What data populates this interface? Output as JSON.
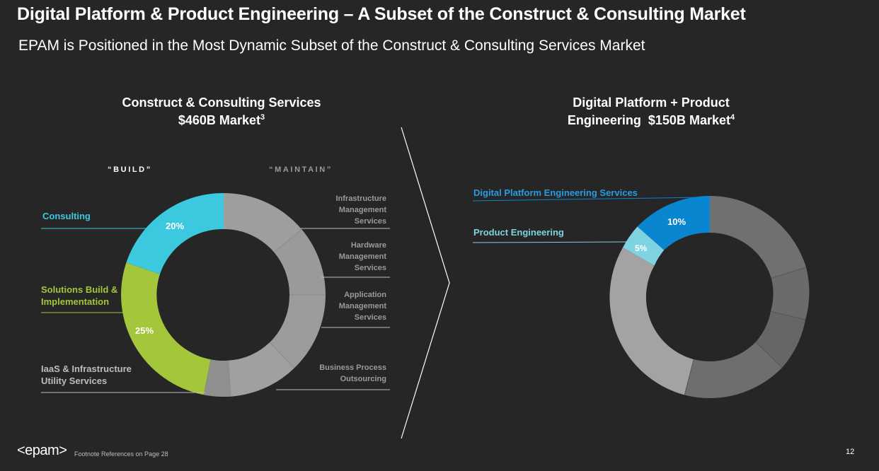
{
  "slide": {
    "title": "Digital Platform & Product Engineering – A Subset of the Construct & Consulting Market",
    "subtitle": "EPAM is Positioned in the Most Dynamic Subset of the Construct & Consulting Services Market",
    "page_number": "12",
    "footnote": "Footnote References on Page 28",
    "logo_text": "<epam>"
  },
  "left_chart": {
    "heading_line1": "Construct & Consulting Services",
    "heading_line2": "$460B Market",
    "heading_sup": "3",
    "build_label": "“BUILD”",
    "maintain_label": "“MAINTAIN”",
    "left_labels": {
      "consulting": "Consulting",
      "solutions_line1": "Solutions Build &",
      "solutions_line2": "Implementation",
      "iaas_line1": "IaaS & Infrastructure",
      "iaas_line2": "Utility Services"
    },
    "right_labels": {
      "infra_line1": "Infrastructure",
      "infra_line2": "Management",
      "infra_line3": "Services",
      "hw_line1": "Hardware",
      "hw_line2": "Management",
      "hw_line3": "Services",
      "app_line1": "Application",
      "app_line2": "Management",
      "app_line3": "Services",
      "bpo_line1": "Business Process",
      "bpo_line2": "Outsourcing"
    },
    "pct_labels": {
      "consulting": "20%",
      "solutions": "25%"
    }
  },
  "right_chart": {
    "heading_line1": "Digital Platform + Product",
    "heading_line2": "Engineering  $150B Market",
    "heading_sup": "4",
    "labels": {
      "digital": "Digital Platform Engineering Services",
      "product": "Product Engineering"
    },
    "pct_labels": {
      "digital": "10%",
      "product": "5%"
    }
  },
  "colors": {
    "background": "#262626",
    "consulting": "#3cc8df",
    "solutions": "#a4c63a",
    "digital": "#0a86d1",
    "product": "#7fd3e0",
    "gray_light": "#9e9e9e",
    "gray_dark": "#6b6b6b"
  },
  "chart_data": [
    {
      "type": "pie",
      "title": "Construct & Consulting Services $460B Market",
      "slices": [
        {
          "label": "Infrastructure Management Services",
          "value": null
        },
        {
          "label": "Hardware Management Services",
          "value": null
        },
        {
          "label": "Application Management Services",
          "value": null
        },
        {
          "label": "Business Process Outsourcing",
          "value": null
        },
        {
          "label": "IaaS & Infrastructure Utility Services",
          "value": null
        },
        {
          "label": "Solutions Build & Implementation",
          "value": 25
        },
        {
          "label": "Consulting",
          "value": 20
        }
      ]
    },
    {
      "type": "pie",
      "title": "Digital Platform + Product Engineering $150B Market",
      "slices": [
        {
          "label": "Digital Platform Engineering Services",
          "value": 10
        },
        {
          "label": "Product Engineering",
          "value": 5
        }
      ]
    }
  ]
}
